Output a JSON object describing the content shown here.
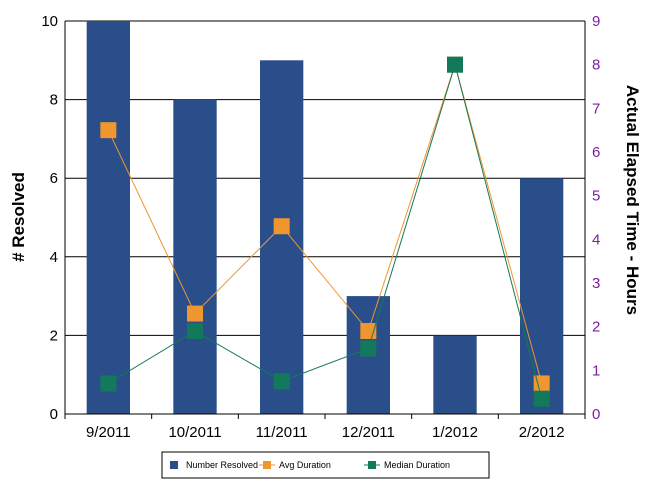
{
  "chart_data": {
    "type": "bar",
    "categories": [
      "9/2011",
      "10/2011",
      "11/2011",
      "12/2011",
      "1/2012",
      "2/2012"
    ],
    "series": [
      {
        "name": "Number Resolved",
        "type": "bar",
        "axis": "left",
        "color": "#2a4e8a",
        "values": [
          10,
          8,
          9,
          3,
          2,
          6
        ]
      },
      {
        "name": "Avg Duration",
        "type": "line",
        "axis": "right",
        "color": "#f0962f",
        "values": [
          6.5,
          2.3,
          4.3,
          1.9,
          8.0,
          0.7
        ]
      },
      {
        "name": "Median Duration",
        "type": "line",
        "axis": "right",
        "color": "#127a5a",
        "values": [
          0.7,
          1.9,
          0.75,
          1.5,
          8.0,
          0.35
        ]
      }
    ],
    "ylabel": "# Resolved",
    "ylabel_right": "Actual Elapsed Time - Hours",
    "ylim": [
      0,
      10
    ],
    "ylim_right": [
      0,
      9
    ],
    "yticks": [
      "0",
      "2",
      "4",
      "6",
      "8",
      "10"
    ],
    "yticks_right": [
      "0",
      "1",
      "2",
      "3",
      "4",
      "5",
      "6",
      "7",
      "8",
      "9"
    ],
    "grid": true,
    "legend_position": "bottom",
    "right_axis_color": "#7b1fa2"
  }
}
